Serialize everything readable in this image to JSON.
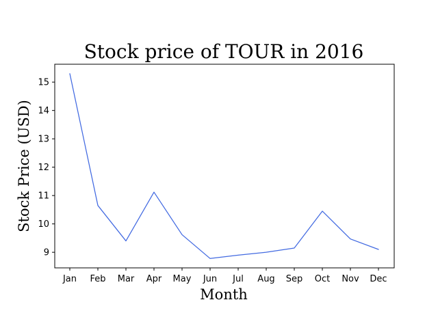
{
  "chart_data": {
    "type": "line",
    "title": "Stock price of TOUR in 2016",
    "xlabel": "Month",
    "ylabel": "Stock Price (USD)",
    "categories": [
      "Jan",
      "Feb",
      "Mar",
      "Apr",
      "May",
      "Jun",
      "Jul",
      "Aug",
      "Sep",
      "Oct",
      "Nov",
      "Dec"
    ],
    "series": [
      {
        "values": [
          15.3,
          10.65,
          9.4,
          11.12,
          9.62,
          8.78,
          8.9,
          9.0,
          9.15,
          10.45,
          9.47,
          9.1
        ],
        "color": "#4169e1"
      }
    ],
    "yticks": [
      "9",
      "10",
      "11",
      "12",
      "13",
      "14",
      "15"
    ],
    "ylim": [
      8.45,
      15.63
    ],
    "grid": false,
    "legend": "none"
  }
}
